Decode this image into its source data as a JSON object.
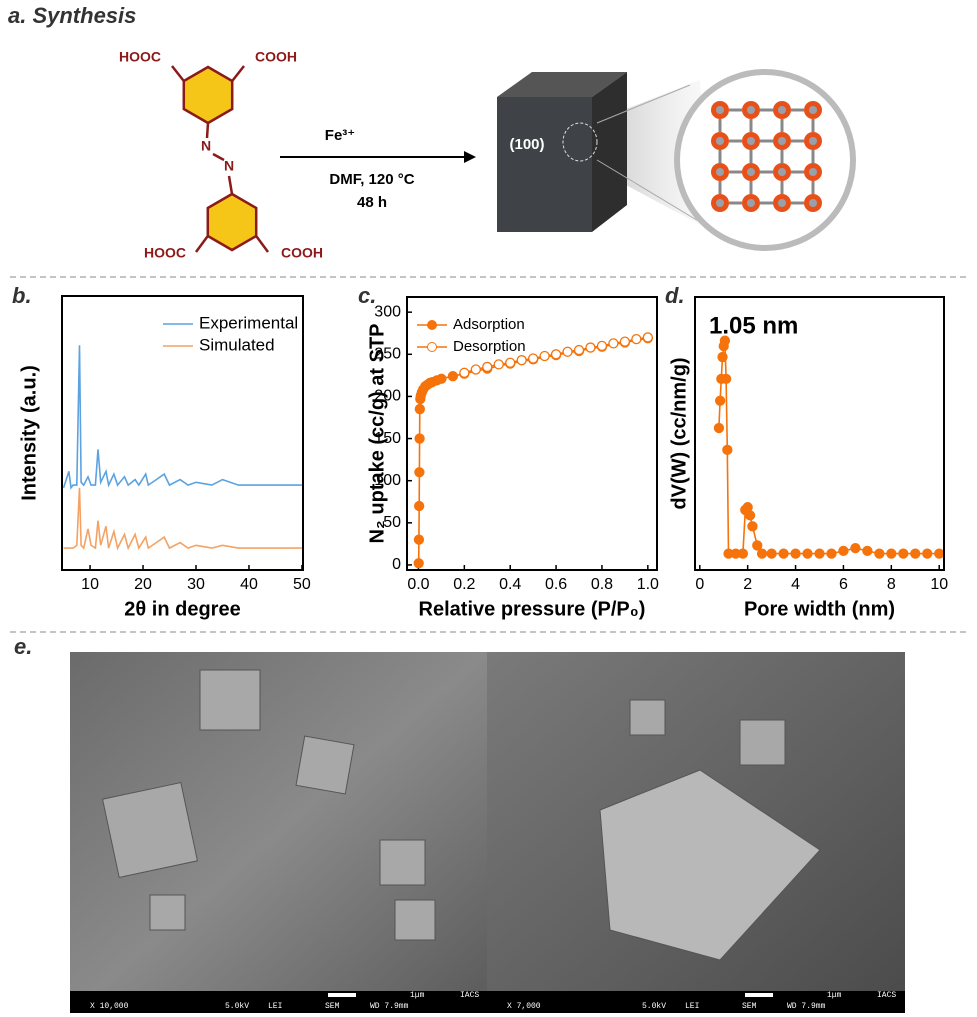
{
  "panel_a": {
    "label": "a. Synthesis",
    "top_left": "HOOC",
    "top_right": "COOH",
    "azo_1": "N",
    "azo_2": "N",
    "bottom_left": "HOOC",
    "bottom_right": "COOH",
    "reagent": "Fe³⁺",
    "conditions": "DMF, 120 °C",
    "time": "48 h",
    "facet": "(100)"
  },
  "chart_data": [
    {
      "type": "line",
      "panel_label": "b.",
      "x_label": "2θ in degree",
      "y_label": "Intensity (a.u.)",
      "x": [
        5,
        6,
        6.4,
        6.8,
        7.5,
        8.0,
        8.3,
        8.8,
        9.6,
        10.2,
        11.0,
        11.5,
        12.0,
        13.0,
        13.5,
        14.5,
        15.2,
        16.5,
        17.2,
        18.5,
        19.2,
        20.5,
        21.0,
        22.5,
        24.0,
        25.0,
        27.0,
        28.5,
        30,
        33,
        35,
        38,
        42,
        46,
        50
      ],
      "series": [
        {
          "name": "Experimental",
          "color": "#5ba3e0",
          "marker": "none",
          "values": [
            30,
            36,
            30,
            31,
            31,
            82,
            32,
            31,
            34,
            31,
            31,
            44,
            32,
            36,
            31,
            35,
            31,
            34,
            31,
            33,
            31,
            35,
            31,
            33,
            35,
            31,
            33,
            31,
            32,
            31,
            33,
            31,
            31,
            31,
            31
          ]
        },
        {
          "name": "Simulated",
          "color": "#f4a262",
          "marker": "none",
          "values": [
            8,
            8,
            8,
            8,
            9,
            30,
            9,
            8,
            15,
            9,
            8,
            18,
            9,
            16,
            8,
            14,
            8,
            13,
            8,
            13,
            8,
            12,
            8,
            10,
            12,
            8,
            10,
            8,
            9,
            8,
            9,
            8,
            8,
            8,
            8
          ]
        }
      ],
      "xlim": [
        4.7,
        50.2
      ],
      "xticks": [
        10,
        20,
        30,
        40,
        50
      ],
      "ylim": [
        0,
        100
      ],
      "legend": "upper right"
    },
    {
      "type": "line",
      "panel_label": "c.",
      "x_label": "Relative pressure (P/P₀)",
      "y_label": "N₂ uptake (cc/g) at STP",
      "series": [
        {
          "name": "Adsorption",
          "color": "#f5730a",
          "marker": "filled",
          "x": [
            0.001,
            0.002,
            0.003,
            0.004,
            0.005,
            0.006,
            0.008,
            0.01,
            0.015,
            0.02,
            0.03,
            0.04,
            0.05,
            0.06,
            0.08,
            0.1,
            0.15,
            0.2,
            0.3,
            0.4,
            0.5,
            0.6,
            0.7,
            0.8,
            0.9,
            1.0
          ],
          "values": [
            2,
            30,
            70,
            110,
            150,
            185,
            197,
            201,
            205,
            208,
            212,
            214,
            216,
            217,
            219,
            221,
            224,
            227,
            233,
            239,
            244,
            249,
            254,
            259,
            264,
            269
          ]
        },
        {
          "name": "Desorption",
          "color": "#f5730a",
          "marker": "open",
          "x": [
            1.0,
            0.95,
            0.9,
            0.85,
            0.8,
            0.75,
            0.7,
            0.65,
            0.6,
            0.55,
            0.5,
            0.45,
            0.4,
            0.35,
            0.3,
            0.25,
            0.2
          ],
          "values": [
            270,
            268,
            265,
            263,
            260,
            258,
            255,
            253,
            250,
            248,
            245,
            243,
            240,
            238,
            235,
            232,
            228
          ]
        }
      ],
      "xlim": [
        -0.05,
        1.04
      ],
      "xticks": [
        {
          "value": 0,
          "label": "0.0"
        },
        {
          "value": 0.2,
          "label": "0.2"
        },
        {
          "value": 0.4,
          "label": "0.4"
        },
        {
          "value": 0.6,
          "label": "0.6"
        },
        {
          "value": 0.8,
          "label": "0.8"
        },
        {
          "value": 1,
          "label": "1.0"
        }
      ],
      "ylim": [
        -6,
        318
      ],
      "yticks": [
        0,
        50,
        100,
        150,
        200,
        250,
        300
      ],
      "legend": "upper left"
    },
    {
      "type": "line",
      "panel_label": "d.",
      "x_label": "Pore width (nm)",
      "y_label": "dV(W) (cc/nm/g)",
      "annotation": "1.05 nm",
      "x": [
        0.8,
        0.85,
        0.9,
        0.95,
        1.0,
        1.05,
        1.1,
        1.15,
        1.2,
        1.5,
        1.8,
        1.9,
        2.0,
        2.1,
        2.2,
        2.4,
        2.6,
        3.0,
        3.5,
        4,
        4.5,
        5,
        5.5,
        6,
        6.5,
        7,
        7.5,
        8,
        8.5,
        9,
        9.5,
        10
      ],
      "series": [
        {
          "color": "#f5730a",
          "marker": "filled",
          "values": [
            52,
            62,
            70,
            78,
            82,
            84,
            70,
            44,
            6,
            6,
            6,
            22,
            23,
            20,
            16,
            9,
            6,
            6,
            6,
            6,
            6,
            6,
            6,
            7,
            8,
            7,
            6,
            6,
            6,
            6,
            6,
            6
          ]
        }
      ],
      "xlim": [
        -0.2,
        10.2
      ],
      "xticks": [
        0,
        2,
        4,
        6,
        8,
        10
      ],
      "ylim": [
        0,
        100
      ]
    }
  ],
  "panel_e": {
    "label": "e.",
    "images": [
      {
        "magnification": "X 10,000",
        "voltage": "5.0kV",
        "detector": "LEI",
        "mode": "SEM",
        "distance": "WD 7.9mm",
        "scale": "1μm",
        "lab": "IACS"
      },
      {
        "magnification": "X 7,000",
        "voltage": "5.0kV",
        "detector": "LEI",
        "mode": "SEM",
        "distance": "WD 7.9mm",
        "scale": "1μm",
        "lab": "IACS"
      }
    ]
  }
}
